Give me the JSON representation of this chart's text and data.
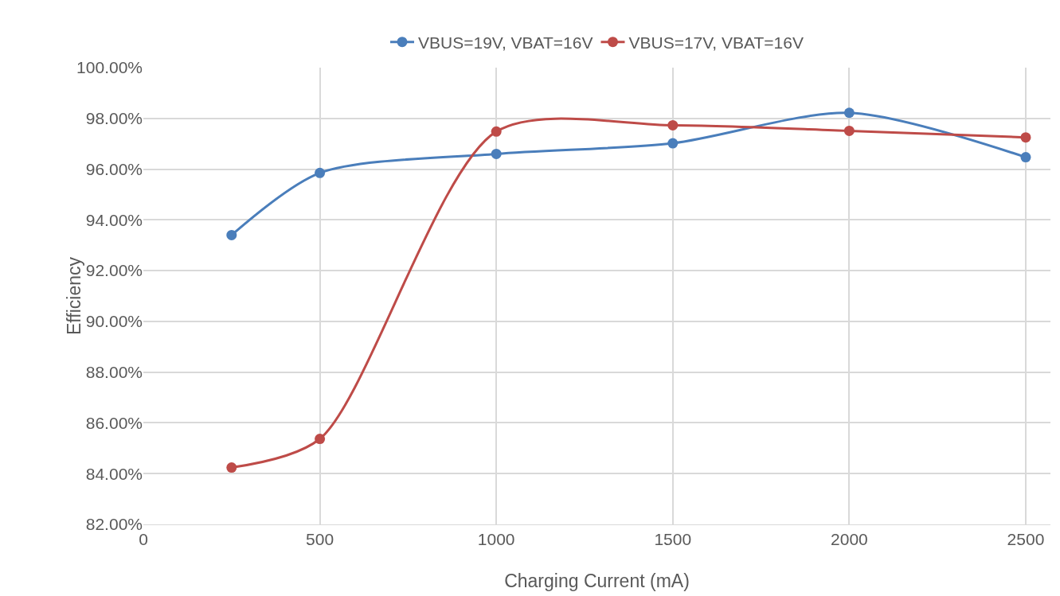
{
  "chart_data": {
    "type": "line",
    "xlabel": "Charging Current (mA)",
    "ylabel": "Efficiency",
    "x": [
      250,
      500,
      1000,
      1500,
      2000,
      2500
    ],
    "series": [
      {
        "name": "VBUS=19V, VBAT=16V",
        "color": "#4a7ebb",
        "values": [
          93.4,
          95.85,
          96.6,
          97.02,
          98.22,
          96.47
        ]
      },
      {
        "name": "VBUS=17V, VBAT=16V",
        "color": "#be4b48",
        "values": [
          84.24,
          85.37,
          97.48,
          97.73,
          97.51,
          97.25
        ]
      }
    ],
    "xlim": [
      0,
      2570
    ],
    "xticks": [
      0,
      500,
      1000,
      1500,
      2000,
      2500
    ],
    "ylim": [
      82,
      100
    ],
    "yticks": [
      {
        "value": 82,
        "label": "82.00%"
      },
      {
        "value": 84,
        "label": "84.00%"
      },
      {
        "value": 86,
        "label": "86.00%"
      },
      {
        "value": 88,
        "label": "88.00%"
      },
      {
        "value": 90,
        "label": "90.00%"
      },
      {
        "value": 92,
        "label": "92.00%"
      },
      {
        "value": 94,
        "label": "94.00%"
      },
      {
        "value": 96,
        "label": "96.00%"
      },
      {
        "value": 98,
        "label": "98.00%"
      },
      {
        "value": 100,
        "label": "100.00%"
      }
    ],
    "grid": true,
    "legend": "top",
    "marker": "circle",
    "line_style": "solid"
  }
}
